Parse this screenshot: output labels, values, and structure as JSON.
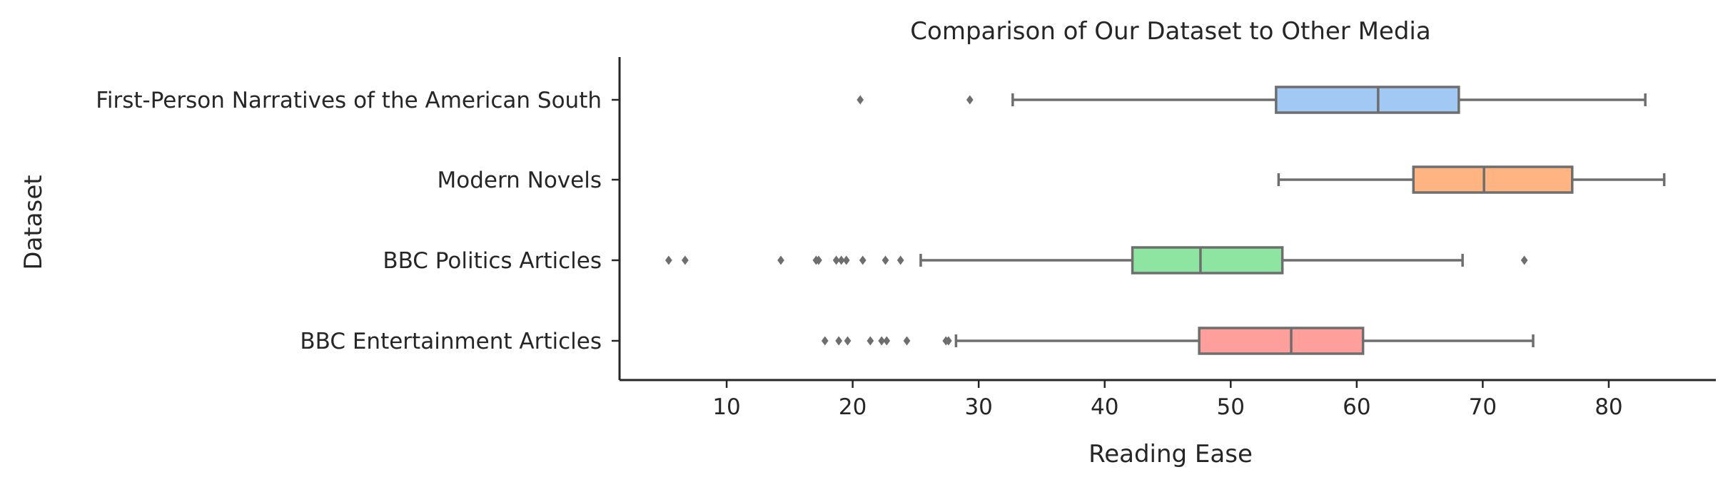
{
  "chart_data": {
    "type": "box",
    "orientation": "horizontal",
    "title": "Comparison of Our Dataset to Other Media",
    "xlabel": "Reading Ease",
    "ylabel": "Dataset",
    "xlim": [
      1.5,
      88.5
    ],
    "xticks": [
      10,
      20,
      30,
      40,
      50,
      60,
      70,
      80
    ],
    "grid": false,
    "colors": {
      "whisker": "#6e6e6e",
      "text": "#262626"
    },
    "series": [
      {
        "name": "First-Person Narratives of the American South",
        "color": "#a1c9f4",
        "whisker_low": 32.7,
        "q1": 53.6,
        "median": 61.7,
        "q3": 68.1,
        "whisker_high": 82.9,
        "outliers": [
          20.6,
          29.3
        ]
      },
      {
        "name": "Modern Novels",
        "color": "#ffb482",
        "whisker_low": 53.8,
        "q1": 64.5,
        "median": 70.1,
        "q3": 77.1,
        "whisker_high": 84.4,
        "outliers": []
      },
      {
        "name": "BBC Politics Articles",
        "color": "#8de5a1",
        "whisker_low": 25.4,
        "q1": 42.2,
        "median": 47.6,
        "q3": 54.1,
        "whisker_high": 68.4,
        "outliers": [
          5.4,
          6.7,
          14.3,
          17.1,
          17.3,
          18.7,
          19.1,
          19.5,
          20.8,
          22.6,
          23.8,
          73.3
        ]
      },
      {
        "name": "BBC Entertainment Articles",
        "color": "#ff9f9b",
        "whisker_low": 28.2,
        "q1": 47.5,
        "median": 54.8,
        "q3": 60.5,
        "whisker_high": 74.0,
        "outliers": [
          17.8,
          18.9,
          19.6,
          21.4,
          22.3,
          22.7,
          24.3,
          27.4,
          27.6
        ]
      }
    ]
  }
}
